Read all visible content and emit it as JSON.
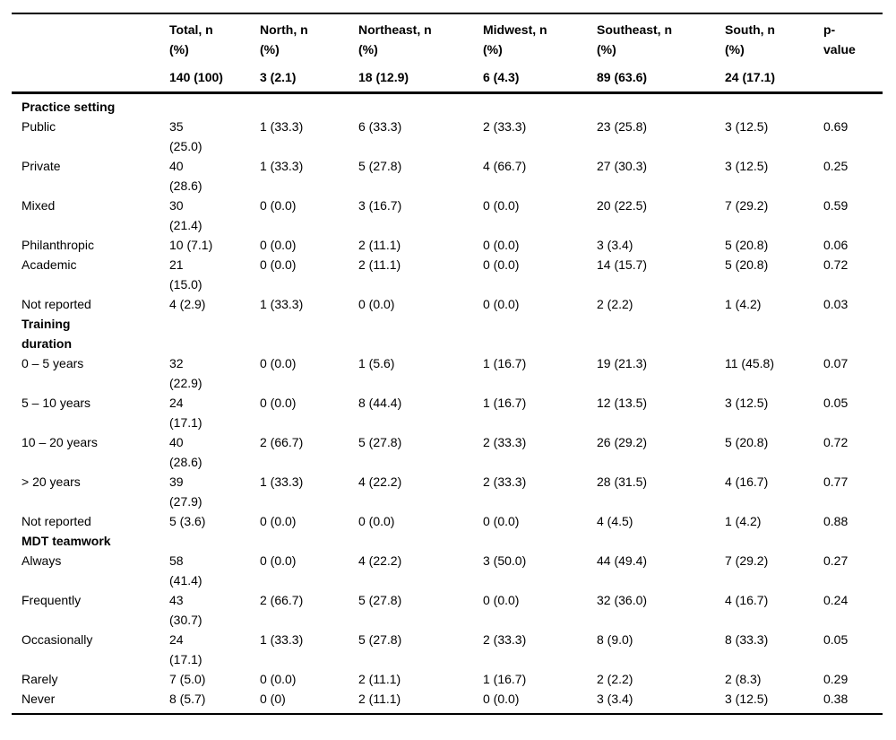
{
  "table": {
    "header": {
      "label_header": "",
      "columns": [
        {
          "title": "Total, n\n(%)",
          "count": "140 (100)"
        },
        {
          "title": "North, n\n(%)",
          "count": "3 (2.1)"
        },
        {
          "title": "Northeast, n\n(%)",
          "count": "18 (12.9)"
        },
        {
          "title": "Midwest, n\n(%)",
          "count": "6 (4.3)"
        },
        {
          "title": "Southeast, n\n(%)",
          "count": "89 (63.6)"
        },
        {
          "title": "South, n\n(%)",
          "count": "24 (17.1)"
        },
        {
          "title": "p-\nvalue",
          "count": ""
        }
      ]
    },
    "sections": [
      {
        "title": "Practice setting",
        "rows": [
          {
            "label": "Public",
            "cells": [
              "35\n(25.0)",
              "1 (33.3)",
              "6 (33.3)",
              "2 (33.3)",
              "23 (25.8)",
              "3 (12.5)",
              "0.69"
            ]
          },
          {
            "label": "Private",
            "cells": [
              "40\n(28.6)",
              "1 (33.3)",
              "5 (27.8)",
              "4 (66.7)",
              "27 (30.3)",
              "3 (12.5)",
              "0.25"
            ]
          },
          {
            "label": "Mixed",
            "cells": [
              "30\n(21.4)",
              "0 (0.0)",
              "3 (16.7)",
              "0 (0.0)",
              "20 (22.5)",
              "7 (29.2)",
              "0.59"
            ]
          },
          {
            "label": "Philanthropic",
            "cells": [
              "10 (7.1)",
              "0 (0.0)",
              "2 (11.1)",
              "0 (0.0)",
              "3 (3.4)",
              "5 (20.8)",
              "0.06"
            ]
          },
          {
            "label": "Academic",
            "cells": [
              "21\n(15.0)",
              "0 (0.0)",
              "2 (11.1)",
              "0 (0.0)",
              "14 (15.7)",
              "5 (20.8)",
              "0.72"
            ]
          },
          {
            "label": "Not reported",
            "cells": [
              "4 (2.9)",
              "1 (33.3)",
              "0 (0.0)",
              "0 (0.0)",
              "2 (2.2)",
              "1 (4.2)",
              "0.03"
            ]
          }
        ]
      },
      {
        "title": "Training\nduration",
        "rows": [
          {
            "label": "0 – 5 years",
            "cells": [
              "32\n(22.9)",
              "0 (0.0)",
              "1 (5.6)",
              "1 (16.7)",
              "19 (21.3)",
              "11 (45.8)",
              "0.07"
            ]
          },
          {
            "label": "5 – 10 years",
            "cells": [
              "24\n(17.1)",
              "0 (0.0)",
              "8 (44.4)",
              "1 (16.7)",
              "12 (13.5)",
              "3 (12.5)",
              "0.05"
            ]
          },
          {
            "label": "10 – 20 years",
            "cells": [
              "40\n(28.6)",
              "2 (66.7)",
              "5 (27.8)",
              "2 (33.3)",
              "26 (29.2)",
              "5 (20.8)",
              "0.72"
            ]
          },
          {
            "label": "> 20 years",
            "cells": [
              "39\n(27.9)",
              "1 (33.3)",
              "4 (22.2)",
              "2 (33.3)",
              "28 (31.5)",
              "4 (16.7)",
              "0.77"
            ]
          },
          {
            "label": "Not reported",
            "cells": [
              "5 (3.6)",
              "0 (0.0)",
              "0 (0.0)",
              "0 (0.0)",
              "4 (4.5)",
              "1 (4.2)",
              "0.88"
            ]
          }
        ]
      },
      {
        "title": "MDT teamwork",
        "rows": [
          {
            "label": "Always",
            "cells": [
              "58\n(41.4)",
              "0 (0.0)",
              "4 (22.2)",
              "3 (50.0)",
              "44 (49.4)",
              "7 (29.2)",
              "0.27"
            ]
          },
          {
            "label": "Frequently",
            "cells": [
              "43\n(30.7)",
              "2 (66.7)",
              "5 (27.8)",
              "0 (0.0)",
              "32 (36.0)",
              "4 (16.7)",
              "0.24"
            ]
          },
          {
            "label": "Occasionally",
            "cells": [
              "24\n(17.1)",
              "1 (33.3)",
              "5 (27.8)",
              "2 (33.3)",
              "8 (9.0)",
              "8 (33.3)",
              "0.05"
            ]
          },
          {
            "label": "Rarely",
            "cells": [
              "7 (5.0)",
              "0 (0.0)",
              "2 (11.1)",
              "1 (16.7)",
              "2 (2.2)",
              "2 (8.3)",
              "0.29"
            ]
          },
          {
            "label": "Never",
            "cells": [
              "8 (5.7)",
              "0 (0)",
              "2 (11.1)",
              "0 (0.0)",
              "3 (3.4)",
              "3 (12.5)",
              "0.38"
            ]
          }
        ]
      }
    ]
  }
}
